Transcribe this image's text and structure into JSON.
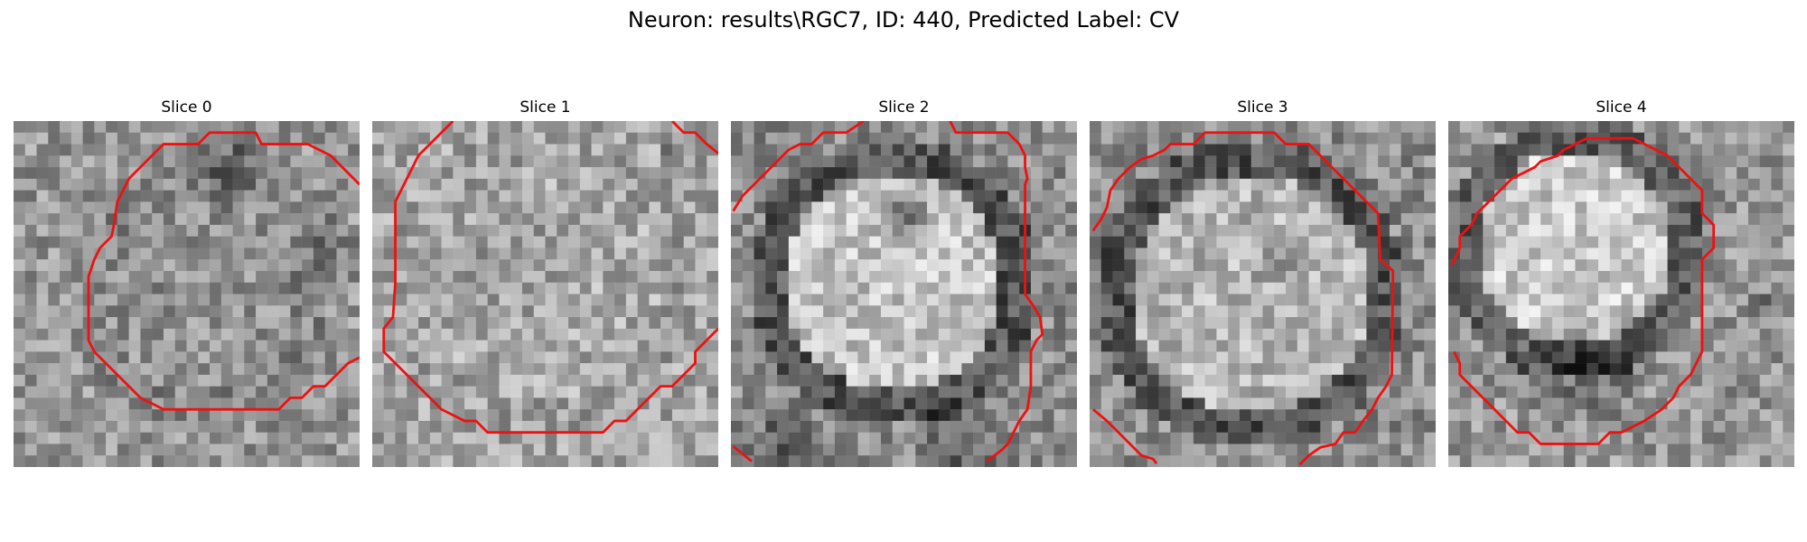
{
  "figure": {
    "title": "Neuron: results\\RGC7, ID: 440, Predicted Label: CV",
    "contour_color": "#ee1111",
    "colormap": "grayscale",
    "panels": [
      {
        "title": "Slice 0"
      },
      {
        "title": "Slice 1"
      },
      {
        "title": "Slice 2"
      },
      {
        "title": "Slice 3"
      },
      {
        "title": "Slice 4"
      }
    ]
  }
}
